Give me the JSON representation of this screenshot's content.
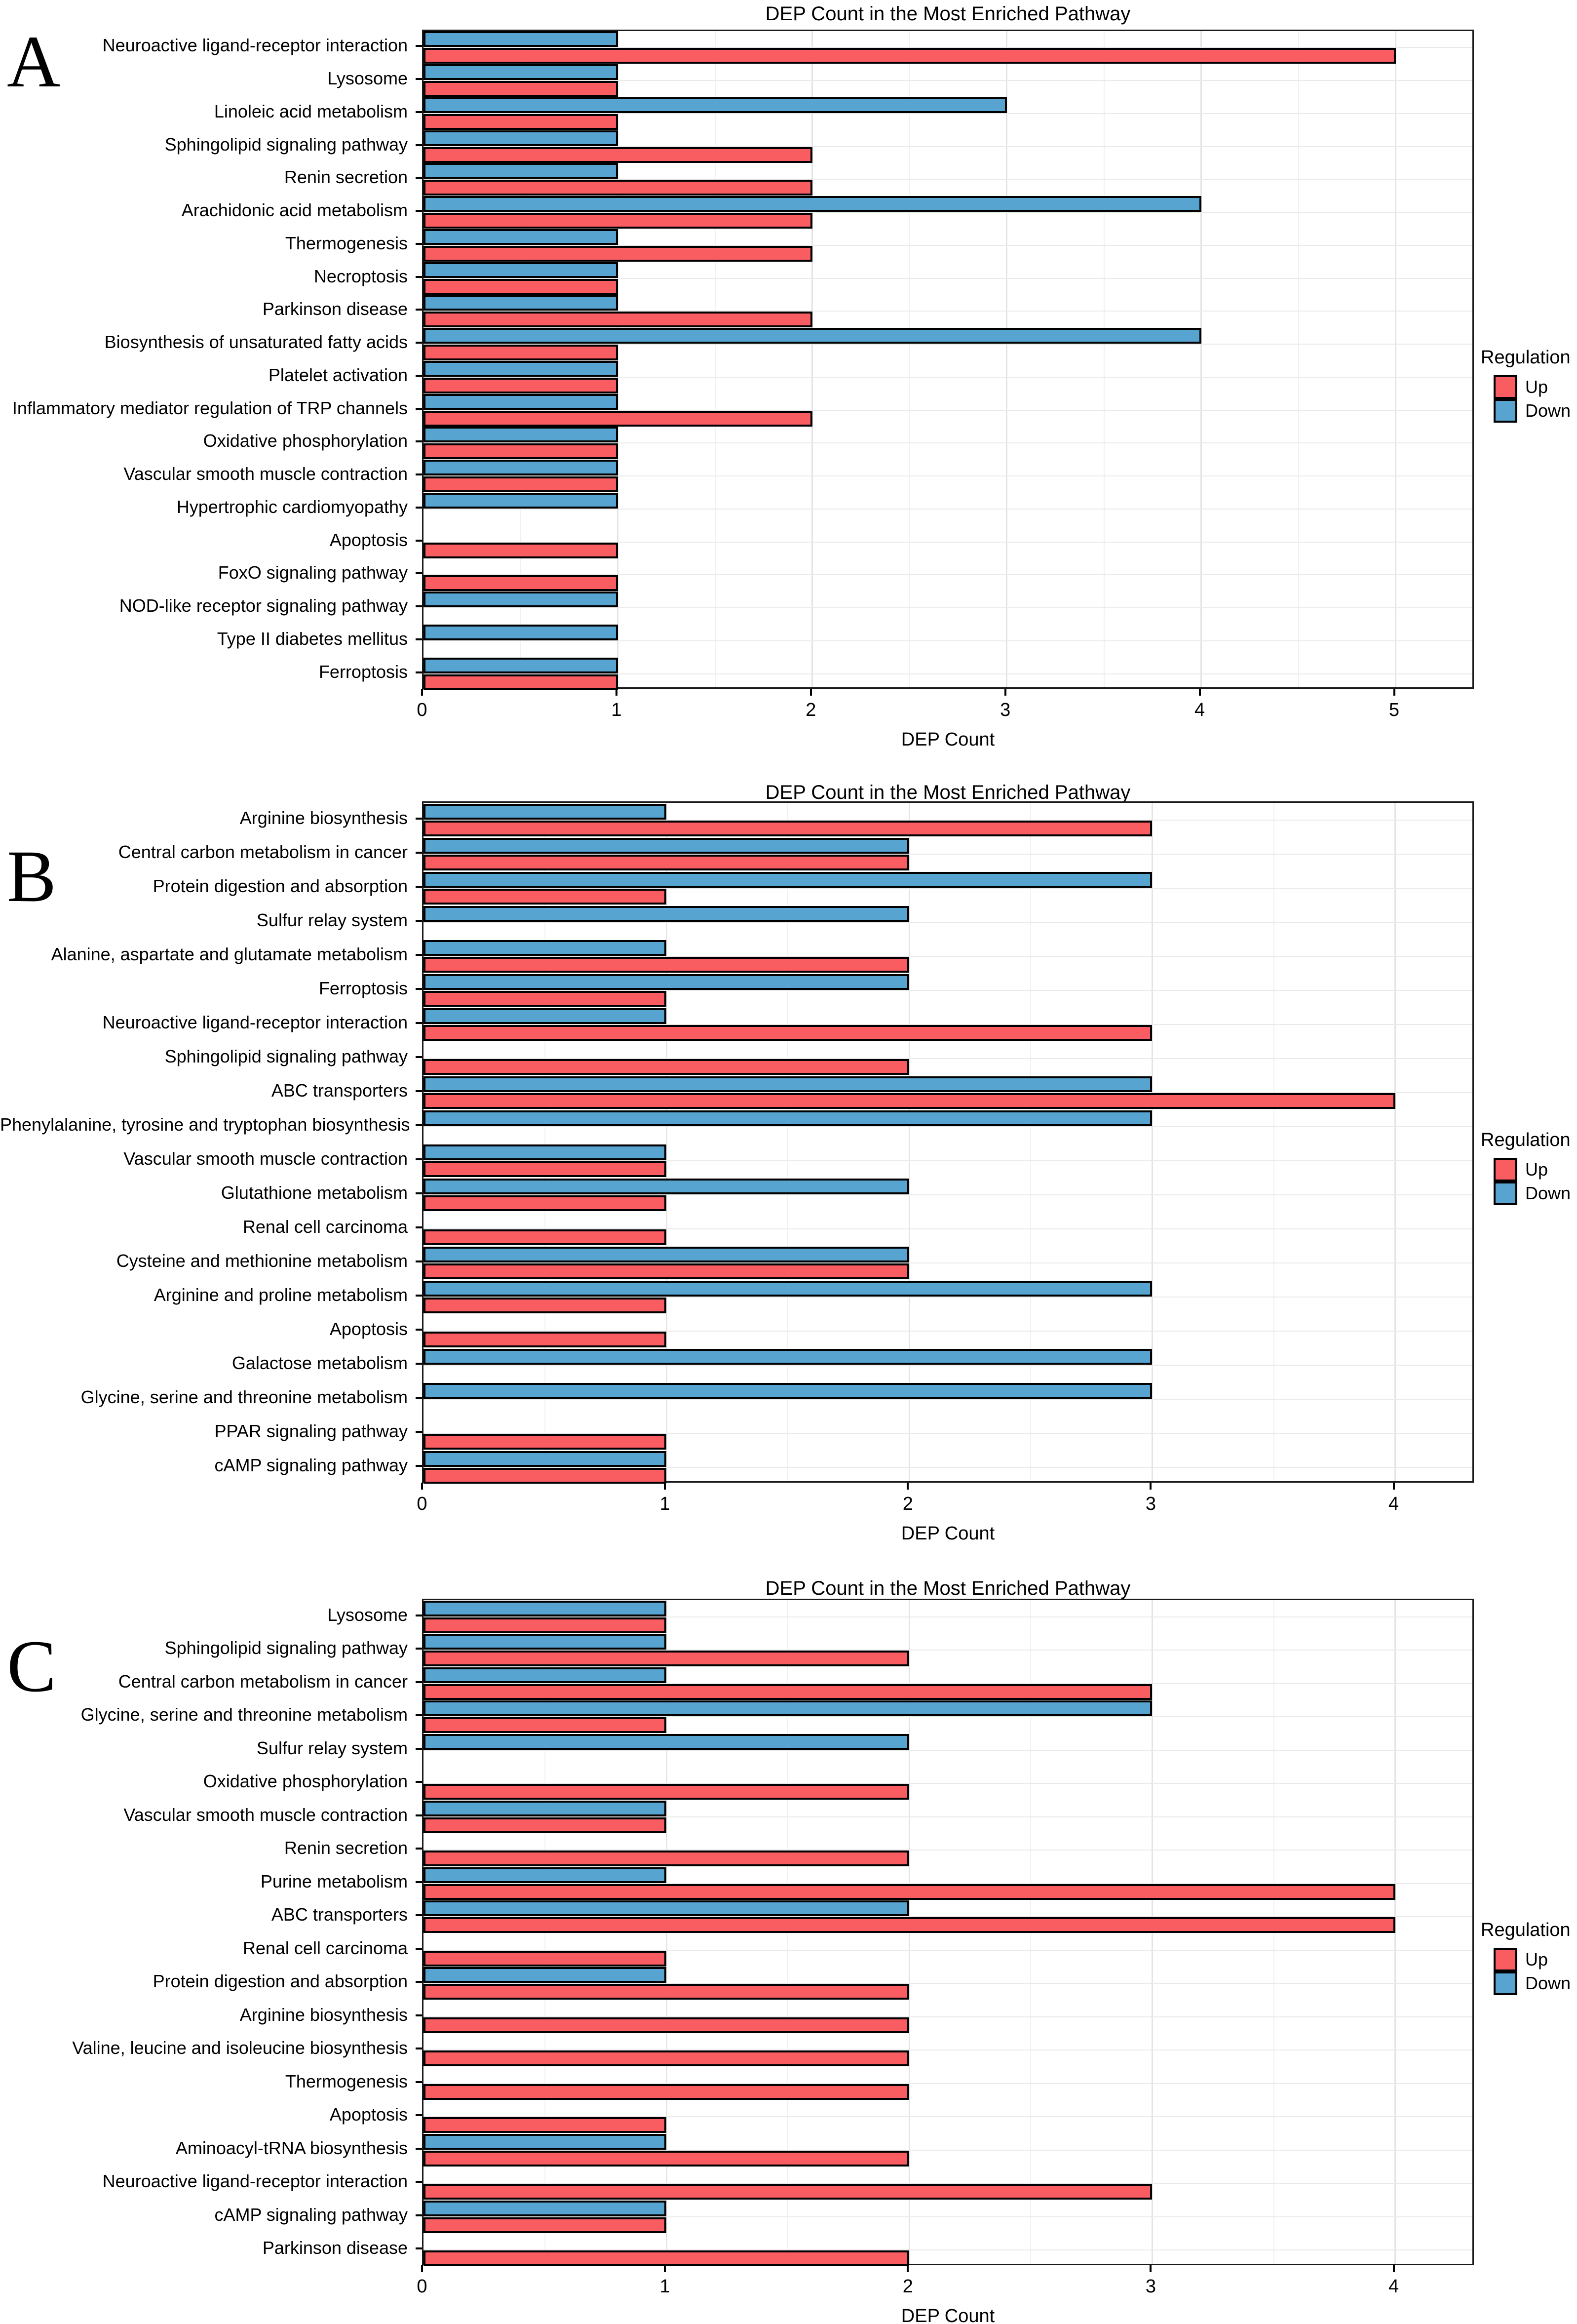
{
  "figure": {
    "panel_labels": [
      "A",
      "B",
      "C"
    ]
  },
  "legend": {
    "title": "Regulation",
    "items": [
      {
        "label": "Up",
        "color": "#F95D62"
      },
      {
        "label": "Down",
        "color": "#57A4D1"
      }
    ]
  },
  "colors": {
    "up": "#F95D62",
    "down": "#57A4D1",
    "bar_border": "#000000",
    "grid_major": "#e4e4e4",
    "grid_minor": "#f1f1f1"
  },
  "chart_data": [
    {
      "type": "bar",
      "orientation": "horizontal",
      "panel_label": "A",
      "title": "DEP Count in the Most Enriched Pathway",
      "xlabel": "DEP Count",
      "ylabel": "",
      "x_ticks": [
        0,
        1,
        2,
        3,
        4,
        5
      ],
      "xlim": [
        0,
        5.41
      ],
      "grid": "major+minor",
      "legend_position": "right",
      "categories": [
        "Neuroactive ligand-receptor interaction",
        "Lysosome",
        "Linoleic acid metabolism",
        "Sphingolipid signaling pathway",
        "Renin secretion",
        "Arachidonic acid metabolism",
        "Thermogenesis",
        "Necroptosis",
        "Parkinson disease",
        "Biosynthesis of unsaturated fatty acids",
        "Platelet activation",
        "Inflammatory mediator regulation of TRP channels",
        "Oxidative phosphorylation",
        "Vascular smooth muscle contraction",
        "Hypertrophic cardiomyopathy",
        "Apoptosis",
        "FoxO signaling pathway",
        "NOD-like receptor signaling pathway",
        "Type II diabetes mellitus",
        "Ferroptosis"
      ],
      "series": [
        {
          "name": "Up",
          "color": "#F95D62",
          "values": [
            5,
            1,
            1,
            2,
            2,
            2,
            2,
            1,
            2,
            1,
            1,
            2,
            1,
            1,
            0,
            1,
            1,
            0,
            0,
            1
          ]
        },
        {
          "name": "Down",
          "color": "#57A4D1",
          "values": [
            1,
            1,
            3,
            1,
            1,
            4,
            1,
            1,
            1,
            4,
            1,
            1,
            1,
            1,
            1,
            0,
            0,
            1,
            1,
            1
          ]
        }
      ]
    },
    {
      "type": "bar",
      "orientation": "horizontal",
      "panel_label": "B",
      "title": "DEP Count in the Most Enriched Pathway",
      "xlabel": "DEP Count",
      "ylabel": "",
      "x_ticks": [
        0,
        1,
        2,
        3,
        4
      ],
      "xlim": [
        0,
        4.33
      ],
      "grid": "major+minor",
      "legend_position": "right",
      "categories": [
        "Arginine biosynthesis",
        "Central carbon metabolism in cancer",
        "Protein digestion and absorption",
        "Sulfur relay system",
        "Alanine, aspartate and glutamate metabolism",
        "Ferroptosis",
        "Neuroactive ligand-receptor interaction",
        "Sphingolipid signaling pathway",
        "ABC transporters",
        "Phenylalanine, tyrosine and tryptophan biosynthesis",
        "Vascular smooth muscle contraction",
        "Glutathione metabolism",
        "Renal cell carcinoma",
        "Cysteine and methionine metabolism",
        "Arginine and proline metabolism",
        "Apoptosis",
        "Galactose metabolism",
        "Glycine, serine and threonine metabolism",
        "PPAR signaling pathway",
        "cAMP signaling pathway"
      ],
      "series": [
        {
          "name": "Up",
          "color": "#F95D62",
          "values": [
            3,
            2,
            1,
            0,
            2,
            1,
            3,
            2,
            4,
            0,
            1,
            1,
            1,
            2,
            1,
            1,
            0,
            0,
            1,
            1
          ]
        },
        {
          "name": "Down",
          "color": "#57A4D1",
          "values": [
            1,
            2,
            3,
            2,
            1,
            2,
            1,
            0,
            3,
            3,
            1,
            2,
            0,
            2,
            3,
            0,
            3,
            3,
            0,
            1
          ]
        }
      ]
    },
    {
      "type": "bar",
      "orientation": "horizontal",
      "panel_label": "C",
      "title": "DEP Count in the Most Enriched Pathway",
      "xlabel": "DEP Count",
      "ylabel": "",
      "x_ticks": [
        0,
        1,
        2,
        3,
        4
      ],
      "xlim": [
        0,
        4.33
      ],
      "grid": "major+minor",
      "legend_position": "right",
      "categories": [
        "Lysosome",
        "Sphingolipid signaling pathway",
        "Central carbon metabolism in cancer",
        "Glycine, serine and threonine metabolism",
        "Sulfur relay system",
        "Oxidative phosphorylation",
        "Vascular smooth muscle contraction",
        "Renin secretion",
        "Purine metabolism",
        "ABC transporters",
        "Renal cell carcinoma",
        "Protein digestion and absorption",
        "Arginine biosynthesis",
        "Valine, leucine and isoleucine biosynthesis",
        "Thermogenesis",
        "Apoptosis",
        "Aminoacyl-tRNA biosynthesis",
        "Neuroactive ligand-receptor interaction",
        "cAMP signaling pathway",
        "Parkinson disease"
      ],
      "series": [
        {
          "name": "Up",
          "color": "#F95D62",
          "values": [
            1,
            2,
            3,
            1,
            0,
            2,
            1,
            2,
            4,
            4,
            1,
            2,
            2,
            2,
            2,
            1,
            2,
            3,
            1,
            2
          ]
        },
        {
          "name": "Down",
          "color": "#57A4D1",
          "values": [
            1,
            1,
            1,
            3,
            2,
            0,
            1,
            0,
            1,
            2,
            0,
            1,
            0,
            0,
            0,
            0,
            1,
            0,
            1,
            0
          ]
        }
      ]
    }
  ]
}
